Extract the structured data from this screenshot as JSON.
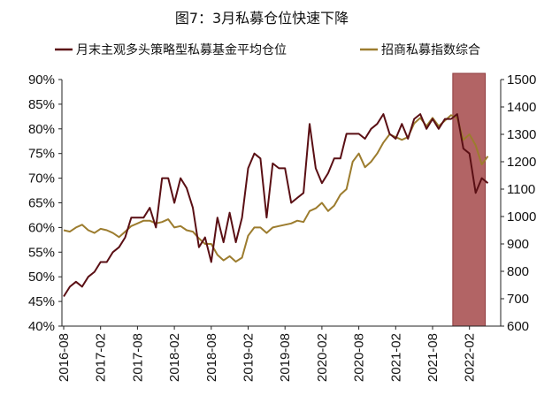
{
  "chart_data": {
    "type": "line",
    "title": "图7：3月私募仓位快速下降",
    "legend": {
      "placement": "top",
      "entries": [
        "月末主观多头策略型私募基金平均仓位",
        "招商私募指数综合"
      ]
    },
    "colors": {
      "position": "#5a0f14",
      "index": "#9c7c2e",
      "highlight": "#b26465"
    },
    "x_tick_labels": [
      "2016-08",
      "2017-02",
      "2017-08",
      "2018-02",
      "2018-08",
      "2019-02",
      "2019-08",
      "2020-02",
      "2020-08",
      "2021-02",
      "2021-08",
      "2022-02"
    ],
    "left_axis": {
      "range": [
        0.4,
        0.9
      ],
      "tick_labels": [
        "40%",
        "45%",
        "50%",
        "55%",
        "60%",
        "65%",
        "70%",
        "75%",
        "80%",
        "85%",
        "90%"
      ]
    },
    "right_axis": {
      "range": [
        600,
        1500
      ],
      "tick_labels": [
        "600",
        "700",
        "800",
        "900",
        "1000",
        "1100",
        "1200",
        "1300",
        "1400",
        "1500"
      ]
    },
    "highlight_range": [
      "2021-11",
      "2022-04"
    ],
    "series": [
      {
        "name": "月末主观多头策略型私募基金平均仓位",
        "axis": "left",
        "x": [
          "2016-08",
          "2016-09",
          "2016-10",
          "2016-11",
          "2016-12",
          "2017-01",
          "2017-02",
          "2017-03",
          "2017-04",
          "2017-05",
          "2017-06",
          "2017-07",
          "2017-08",
          "2017-09",
          "2017-10",
          "2017-11",
          "2017-12",
          "2018-01",
          "2018-02",
          "2018-03",
          "2018-04",
          "2018-05",
          "2018-06",
          "2018-07",
          "2018-08",
          "2018-09",
          "2018-10",
          "2018-11",
          "2018-12",
          "2019-01",
          "2019-02",
          "2019-03",
          "2019-04",
          "2019-05",
          "2019-06",
          "2019-07",
          "2019-08",
          "2019-09",
          "2019-10",
          "2019-11",
          "2019-12",
          "2020-01",
          "2020-02",
          "2020-03",
          "2020-04",
          "2020-05",
          "2020-06",
          "2020-07",
          "2020-08",
          "2020-09",
          "2020-10",
          "2020-11",
          "2020-12",
          "2021-01",
          "2021-02",
          "2021-03",
          "2021-04",
          "2021-05",
          "2021-06",
          "2021-07",
          "2021-08",
          "2021-09",
          "2021-10",
          "2021-11",
          "2021-12",
          "2022-01",
          "2022-02",
          "2022-03",
          "2022-04",
          "2022-05"
        ],
        "values": [
          0.46,
          0.48,
          0.49,
          0.48,
          0.5,
          0.51,
          0.53,
          0.53,
          0.55,
          0.56,
          0.58,
          0.62,
          0.62,
          0.62,
          0.64,
          0.6,
          0.7,
          0.7,
          0.65,
          0.7,
          0.68,
          0.64,
          0.56,
          0.58,
          0.53,
          0.62,
          0.57,
          0.63,
          0.57,
          0.62,
          0.72,
          0.75,
          0.74,
          0.62,
          0.73,
          0.72,
          0.72,
          0.65,
          0.66,
          0.67,
          0.81,
          0.72,
          0.69,
          0.71,
          0.74,
          0.74,
          0.79,
          0.79,
          0.79,
          0.78,
          0.8,
          0.81,
          0.83,
          0.79,
          0.78,
          0.81,
          0.78,
          0.82,
          0.83,
          0.8,
          0.82,
          0.8,
          0.82,
          0.82,
          0.83,
          0.76,
          0.75,
          0.67,
          0.7,
          0.69
        ]
      },
      {
        "name": "招商私募指数综合",
        "axis": "right",
        "x": [
          "2016-08",
          "2016-09",
          "2016-10",
          "2016-11",
          "2016-12",
          "2017-01",
          "2017-02",
          "2017-03",
          "2017-04",
          "2017-05",
          "2017-06",
          "2017-07",
          "2017-08",
          "2017-09",
          "2017-10",
          "2017-11",
          "2017-12",
          "2018-01",
          "2018-02",
          "2018-03",
          "2018-04",
          "2018-05",
          "2018-06",
          "2018-07",
          "2018-08",
          "2018-09",
          "2018-10",
          "2018-11",
          "2018-12",
          "2019-01",
          "2019-02",
          "2019-03",
          "2019-04",
          "2019-05",
          "2019-06",
          "2019-07",
          "2019-08",
          "2019-09",
          "2019-10",
          "2019-11",
          "2019-12",
          "2020-01",
          "2020-02",
          "2020-03",
          "2020-04",
          "2020-05",
          "2020-06",
          "2020-07",
          "2020-08",
          "2020-09",
          "2020-10",
          "2020-11",
          "2020-12",
          "2021-01",
          "2021-02",
          "2021-03",
          "2021-04",
          "2021-05",
          "2021-06",
          "2021-07",
          "2021-08",
          "2021-09",
          "2021-10",
          "2021-11",
          "2021-12",
          "2022-01",
          "2022-02",
          "2022-03",
          "2022-04",
          "2022-05"
        ],
        "values": [
          950,
          945,
          960,
          970,
          950,
          940,
          955,
          950,
          940,
          925,
          945,
          965,
          975,
          985,
          985,
          975,
          980,
          990,
          960,
          965,
          950,
          945,
          920,
          900,
          900,
          860,
          840,
          855,
          835,
          850,
          930,
          960,
          960,
          940,
          960,
          965,
          970,
          975,
          985,
          980,
          1020,
          1030,
          1050,
          1020,
          1040,
          1080,
          1100,
          1200,
          1230,
          1180,
          1200,
          1230,
          1270,
          1300,
          1290,
          1280,
          1290,
          1340,
          1360,
          1330,
          1360,
          1330,
          1350,
          1370,
          1360,
          1280,
          1300,
          1260,
          1190,
          1220
        ]
      }
    ]
  }
}
